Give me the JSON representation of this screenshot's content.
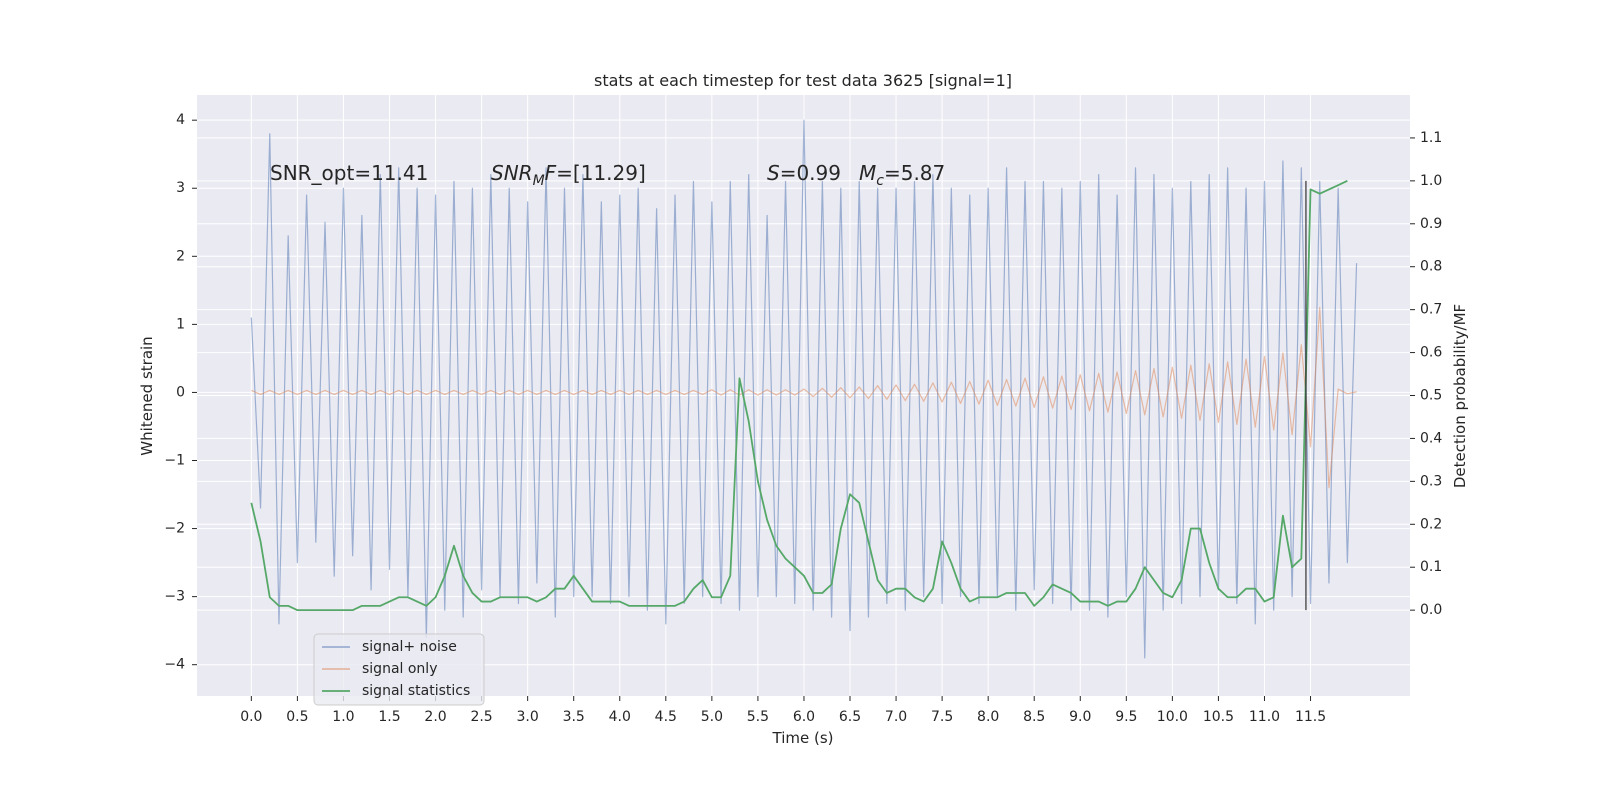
{
  "chart_data": {
    "type": "line",
    "title": "stats at each timestep for test data 3625 [signal=1]",
    "xlabel": "Time (s)",
    "ylabel": "Whitened strain",
    "y2label": "Detection probability/MF",
    "xlim": [
      -0.59,
      12.58
    ],
    "ylim": [
      -4.46,
      4.37
    ],
    "y2lim": [
      -0.2,
      1.2
    ],
    "grid": true,
    "legend_loc": "lower left",
    "xticks": [
      {
        "value": 0,
        "label": "0.0"
      },
      0.5,
      {
        "value": 1,
        "label": "1.0"
      },
      1.5,
      {
        "value": 2,
        "label": "2.0"
      },
      2.5,
      {
        "value": 3,
        "label": "3.0"
      },
      3.5,
      {
        "value": 4,
        "label": "4.0"
      },
      4.5,
      {
        "value": 5,
        "label": "5.0"
      },
      5.5,
      {
        "value": 6,
        "label": "6.0"
      },
      6.5,
      {
        "value": 7,
        "label": "7.0"
      },
      7.5,
      {
        "value": 8,
        "label": "8.0"
      },
      8.5,
      {
        "value": 9,
        "label": "9.0"
      },
      9.5,
      {
        "value": 10,
        "label": "10.0"
      },
      10.5,
      {
        "value": 11,
        "label": "11.0"
      },
      11.5
    ],
    "yticks": [
      {
        "value": -4,
        "label": "−4"
      },
      {
        "value": -3,
        "label": "−3"
      },
      {
        "value": -2,
        "label": "−2"
      },
      {
        "value": -1,
        "label": "−1"
      },
      0,
      1,
      2,
      3,
      4
    ],
    "y2ticks": [
      {
        "value": 0,
        "label": "0.0"
      },
      0.1,
      0.2,
      0.3,
      0.4,
      0.5,
      0.6,
      0.7,
      0.8,
      0.9,
      {
        "value": 1,
        "label": "1.0"
      },
      1.1
    ],
    "annotations": [
      [
        {
          "text": "SNR_opt=11.41",
          "style": "normal"
        }
      ],
      [
        {
          "text": "SNR",
          "style": "italic"
        },
        {
          "text": "M",
          "style": "sub"
        },
        {
          "text": "F",
          "style": "italic"
        },
        {
          "text": "=[11.29]",
          "style": "normal"
        }
      ],
      [
        {
          "text": "S",
          "style": "italic"
        },
        {
          "text": "=0.99",
          "style": "normal"
        }
      ],
      [
        {
          "text": "M",
          "style": "italic"
        },
        {
          "text": "c",
          "style": "sub"
        },
        {
          "text": "=5.87",
          "style": "normal"
        }
      ]
    ],
    "vline": {
      "x": 11.45,
      "y2": [
        0,
        1
      ],
      "color": "#333333"
    },
    "x": [
      0,
      0.1,
      0.2,
      0.3,
      0.4,
      0.5,
      0.6,
      0.7,
      0.8,
      0.9,
      1,
      1.1,
      1.2,
      1.3,
      1.4,
      1.5,
      1.6,
      1.7,
      1.8,
      1.9,
      2,
      2.1,
      2.2,
      2.3,
      2.4,
      2.5,
      2.6,
      2.7,
      2.8,
      2.9,
      3,
      3.1,
      3.2,
      3.3,
      3.4,
      3.5,
      3.6,
      3.7,
      3.8,
      3.9,
      4,
      4.1,
      4.2,
      4.3,
      4.4,
      4.5,
      4.6,
      4.7,
      4.8,
      4.9,
      5,
      5.1,
      5.2,
      5.3,
      5.4,
      5.5,
      5.6,
      5.7,
      5.8,
      5.9,
      6,
      6.1,
      6.2,
      6.3,
      6.4,
      6.5,
      6.6,
      6.7,
      6.8,
      6.9,
      7,
      7.1,
      7.2,
      7.3,
      7.4,
      7.5,
      7.6,
      7.7,
      7.8,
      7.9,
      8,
      8.1,
      8.2,
      8.3,
      8.4,
      8.5,
      8.6,
      8.7,
      8.8,
      8.9,
      9,
      9.1,
      9.2,
      9.3,
      9.4,
      9.5,
      9.6,
      9.7,
      9.8,
      9.9,
      10,
      10.1,
      10.2,
      10.3,
      10.4,
      10.5,
      10.6,
      10.7,
      10.8,
      10.9,
      11,
      11.1,
      11.2,
      11.3,
      11.4,
      11.5,
      11.6,
      11.7,
      11.8,
      11.9,
      12
    ],
    "series": [
      {
        "name": "signal+ noise",
        "color": "#4c72b0",
        "alpha": 0.5,
        "values": [
          1.1,
          -1.7,
          3.8,
          -3.4,
          2.3,
          -2.5,
          2.9,
          -2.2,
          2.5,
          -2.7,
          3.0,
          -2.4,
          2.6,
          -2.9,
          3.2,
          -2.6,
          3.3,
          -3.0,
          3.0,
          -3.6,
          2.9,
          -3.2,
          3.1,
          -3.3,
          3.0,
          -2.9,
          3.2,
          -3.0,
          3.0,
          -3.1,
          2.8,
          -2.8,
          3.3,
          -3.3,
          3.0,
          -3.0,
          3.2,
          -3.0,
          2.8,
          -3.1,
          2.9,
          -3.0,
          3.0,
          -3.2,
          2.7,
          -3.4,
          2.9,
          -3.1,
          3.1,
          -3.0,
          2.8,
          -3.1,
          3.1,
          -3.2,
          3.2,
          -3.0,
          2.6,
          -3.0,
          3.1,
          -3.1,
          4.0,
          -3.2,
          3.1,
          -3.3,
          3.0,
          -3.5,
          3.1,
          -3.3,
          3.0,
          -3.1,
          3.0,
          -3.2,
          3.1,
          -3.0,
          3.2,
          -3.1,
          3.0,
          -3.0,
          2.9,
          -3.1,
          3.0,
          -3.0,
          3.3,
          -3.2,
          3.1,
          -2.9,
          3.1,
          -3.1,
          3.0,
          -3.2,
          3.1,
          -3.2,
          3.2,
          -3.3,
          2.9,
          -3.0,
          3.3,
          -3.9,
          3.2,
          -3.2,
          3.0,
          -3.1,
          3.1,
          -3.0,
          3.2,
          -2.9,
          3.3,
          -3.1,
          3.0,
          -3.4,
          3.1,
          -3.2,
          3.4,
          -3.0,
          3.3,
          -3.1,
          3.1,
          -2.8,
          3.0,
          -2.5,
          1.9
        ]
      },
      {
        "name": "signal only",
        "color": "#dd8452",
        "alpha": 0.5,
        "values": [
          0.03,
          -0.03,
          0.03,
          -0.03,
          0.03,
          -0.03,
          0.03,
          -0.03,
          0.03,
          -0.03,
          0.03,
          -0.03,
          0.03,
          -0.03,
          0.03,
          -0.03,
          0.03,
          -0.03,
          0.03,
          -0.03,
          0.03,
          -0.03,
          0.03,
          -0.03,
          0.03,
          -0.03,
          0.03,
          -0.03,
          0.03,
          -0.03,
          0.03,
          -0.03,
          0.03,
          -0.03,
          0.03,
          -0.03,
          0.03,
          -0.03,
          0.03,
          -0.03,
          0.03,
          -0.03,
          0.03,
          -0.03,
          0.03,
          -0.03,
          0.03,
          -0.03,
          0.03,
          -0.03,
          0.04,
          -0.04,
          0.04,
          -0.04,
          0.04,
          -0.04,
          0.04,
          -0.04,
          0.04,
          -0.04,
          0.05,
          -0.06,
          0.06,
          -0.07,
          0.07,
          -0.08,
          0.08,
          -0.09,
          0.1,
          -0.1,
          0.11,
          -0.12,
          0.12,
          -0.13,
          0.14,
          -0.14,
          0.15,
          -0.16,
          0.16,
          -0.17,
          0.18,
          -0.19,
          0.19,
          -0.2,
          0.21,
          -0.22,
          0.23,
          -0.23,
          0.24,
          -0.25,
          0.26,
          -0.27,
          0.28,
          -0.29,
          0.3,
          -0.31,
          0.32,
          -0.33,
          0.35,
          -0.36,
          0.37,
          -0.38,
          0.4,
          -0.41,
          0.42,
          -0.44,
          0.45,
          -0.47,
          0.49,
          -0.51,
          0.53,
          -0.55,
          0.58,
          -0.62,
          0.7,
          -0.8,
          1.25,
          -1.4,
          0.05,
          -0.02,
          0.01
        ]
      },
      {
        "name": "signal statistics",
        "color": "#55a868",
        "axis": "y2",
        "values": [
          0.25,
          0.16,
          0.03,
          0.01,
          0.01,
          0.0,
          0.0,
          0.0,
          0.0,
          0.0,
          0.0,
          0.0,
          0.01,
          0.01,
          0.01,
          0.02,
          0.03,
          0.03,
          0.02,
          0.01,
          0.03,
          0.08,
          0.15,
          0.08,
          0.04,
          0.02,
          0.02,
          0.03,
          0.03,
          0.03,
          0.03,
          0.02,
          0.03,
          0.05,
          0.05,
          0.08,
          0.05,
          0.02,
          0.02,
          0.02,
          0.02,
          0.01,
          0.01,
          0.01,
          0.01,
          0.01,
          0.01,
          0.02,
          0.05,
          0.07,
          0.03,
          0.03,
          0.08,
          0.54,
          0.44,
          0.3,
          0.21,
          0.15,
          0.12,
          0.1,
          0.08,
          0.04,
          0.04,
          0.06,
          0.19,
          0.27,
          0.25,
          0.16,
          0.07,
          0.04,
          0.05,
          0.05,
          0.03,
          0.02,
          0.05,
          0.16,
          0.11,
          0.05,
          0.02,
          0.03,
          0.03,
          0.03,
          0.04,
          0.04,
          0.04,
          0.01,
          0.03,
          0.06,
          0.05,
          0.04,
          0.02,
          0.02,
          0.02,
          0.01,
          0.02,
          0.02,
          0.05,
          0.1,
          0.07,
          0.04,
          0.03,
          0.07,
          0.19,
          0.19,
          0.11,
          0.05,
          0.03,
          0.03,
          0.05,
          0.05,
          0.02,
          0.03,
          0.22,
          0.1,
          0.12,
          0.98,
          0.97,
          0.98,
          0.99,
          1.0,
          null
        ]
      }
    ]
  }
}
